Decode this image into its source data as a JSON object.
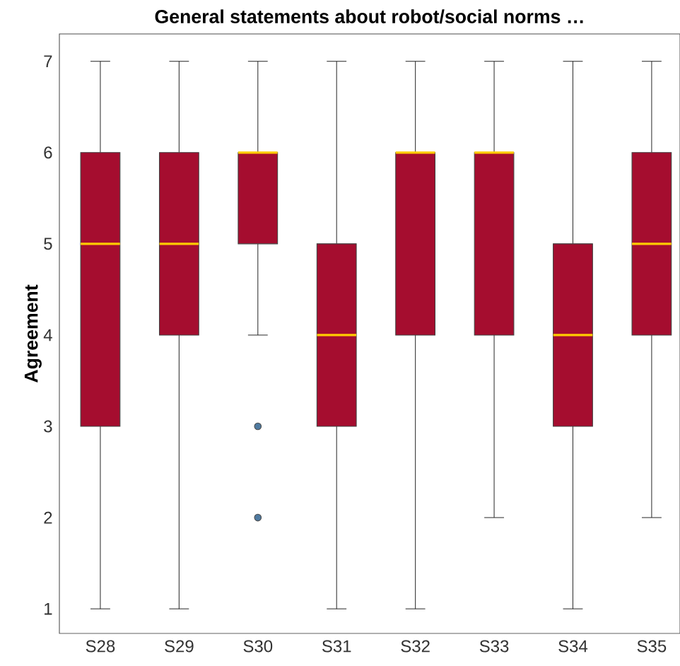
{
  "chart_data": {
    "type": "box",
    "title": "General statements about robot/social norms  …",
    "ylabel": "Agreement",
    "categories": [
      "S28",
      "S29",
      "S30",
      "S31",
      "S32",
      "S33",
      "S34",
      "S35"
    ],
    "series": [
      {
        "color": "#a50d2f",
        "boxes": [
          {
            "low": 1,
            "q1": 3,
            "median": 5,
            "q3": 6,
            "high": 7
          },
          {
            "low": 1,
            "q1": 4,
            "median": 5,
            "q3": 6,
            "high": 7
          },
          {
            "low": 4,
            "q1": 5,
            "median": 6,
            "q3": 6,
            "high": 7,
            "outliers": [
              3,
              2
            ]
          },
          {
            "low": 1,
            "q1": 3,
            "median": 4,
            "q3": 5,
            "high": 7
          },
          {
            "low": 1,
            "q1": 4,
            "median": 6,
            "q3": 6,
            "high": 7
          },
          {
            "low": 2,
            "q1": 4,
            "median": 6,
            "q3": 6,
            "high": 7
          },
          {
            "low": 1,
            "q1": 3,
            "median": 4,
            "q3": 5,
            "high": 7
          },
          {
            "low": 2,
            "q1": 4,
            "median": 5,
            "q3": 6,
            "high": 7
          }
        ]
      }
    ],
    "ylim": [
      0.73,
      7.3
    ],
    "yticks": [
      1,
      2,
      3,
      4,
      5,
      6,
      7
    ],
    "grid": false
  }
}
